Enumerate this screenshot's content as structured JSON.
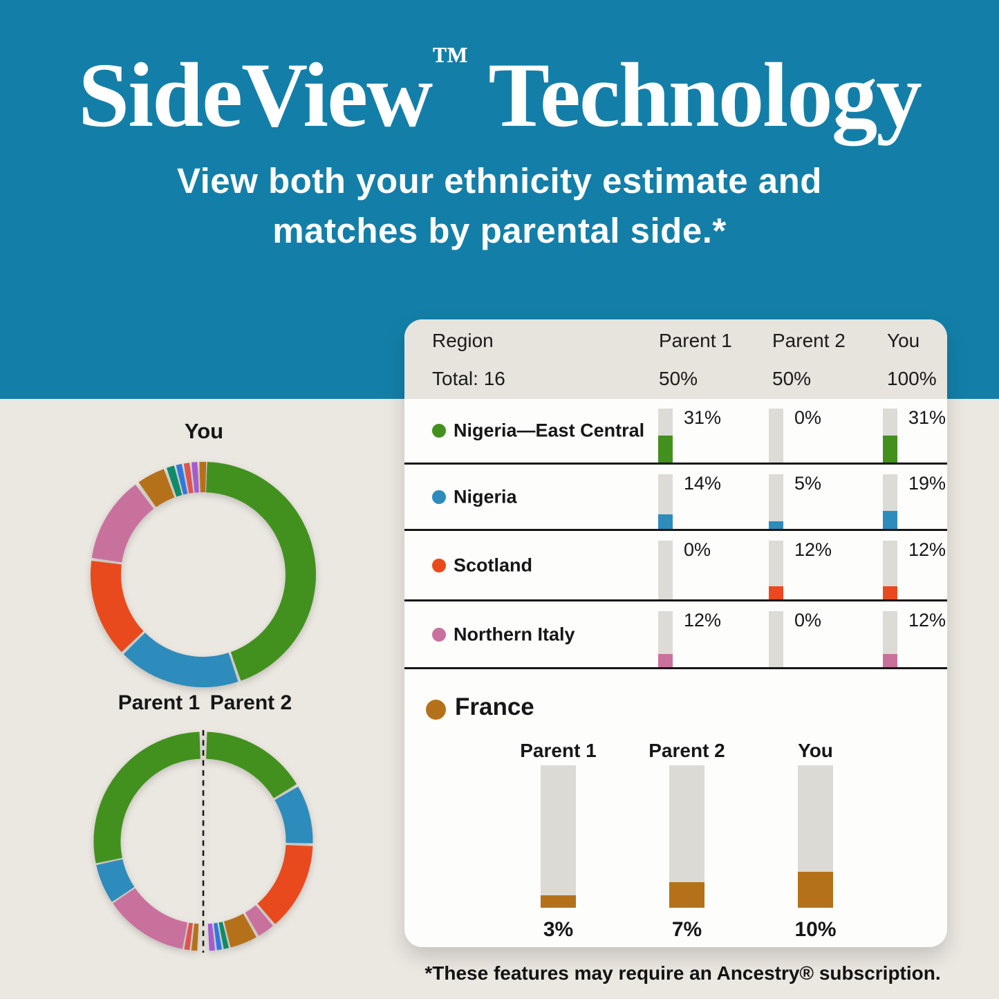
{
  "hero": {
    "title_main": "SideView",
    "title_tm": "™",
    "title_rest": " Technology",
    "subtitle_line1": "View both your ethnicity estimate and",
    "subtitle_line2": "matches by parental side.*",
    "bg_color": "#137FA8"
  },
  "footnote": "*These features may require an Ancestry® subscription.",
  "donut_labels": {
    "you": "You",
    "parent1": "Parent 1",
    "parent2": "Parent 2"
  },
  "palette": {
    "green": "#42911E",
    "blue": "#2D8CBB",
    "orange": "#E84A1D",
    "pink": "#C9719D",
    "brown": "#B5711A",
    "teal": "#0E8C68",
    "royal": "#2E79DE",
    "red": "#DC5452",
    "purple": "#A55BD1",
    "bar_track": "#DDDBD6",
    "page_bg": "#EBE7E1",
    "header_bg": "#E7E3DD"
  },
  "table": {
    "header": {
      "region": "Region",
      "total": "Total: 16",
      "col1": "Parent 1",
      "col2": "Parent 2",
      "col3": "You",
      "val1": "50%",
      "val2": "50%",
      "val3": "100%"
    },
    "rows": [
      {
        "region": "Nigeria—East Central",
        "color_key": "green",
        "values": [
          {
            "label": "31%",
            "pct": 31
          },
          {
            "label": "0%",
            "pct": 0
          },
          {
            "label": "31%",
            "pct": 31
          }
        ]
      },
      {
        "region": "Nigeria",
        "color_key": "blue",
        "values": [
          {
            "label": "14%",
            "pct": 14
          },
          {
            "label": "5%",
            "pct": 5
          },
          {
            "label": "19%",
            "pct": 19
          }
        ]
      },
      {
        "region": "Scotland",
        "color_key": "orange",
        "values": [
          {
            "label": "0%",
            "pct": 0
          },
          {
            "label": "12%",
            "pct": 12
          },
          {
            "label": "12%",
            "pct": 12
          }
        ]
      },
      {
        "region": "Northern Italy",
        "color_key": "pink",
        "values": [
          {
            "label": "12%",
            "pct": 12
          },
          {
            "label": "0%",
            "pct": 0
          },
          {
            "label": "12%",
            "pct": 12
          }
        ]
      }
    ]
  },
  "france": {
    "label": "France",
    "color_key": "brown",
    "bars": [
      {
        "label": "Parent 1",
        "pct": 3,
        "pct_label": "3%"
      },
      {
        "label": "Parent 2",
        "pct": 7,
        "pct_label": "7%"
      },
      {
        "label": "You",
        "pct": 10,
        "pct_label": "10%"
      }
    ]
  },
  "chart_data": [
    {
      "type": "donut",
      "title": "You",
      "legend_position": "none",
      "segments": [
        {
          "region": "Nigeria—East Central",
          "color_key": "green",
          "start_deg": 2,
          "end_deg": 160.5,
          "approx_pct": 44
        },
        {
          "region": "Nigeria",
          "color_key": "blue",
          "start_deg": 162,
          "end_deg": 225,
          "approx_pct": 17.5
        },
        {
          "region": "Scotland",
          "color_key": "orange",
          "start_deg": 226.5,
          "end_deg": 277,
          "approx_pct": 14
        },
        {
          "region": "Northern Italy",
          "color_key": "pink",
          "start_deg": 278.5,
          "end_deg": 323,
          "approx_pct": 12.5
        },
        {
          "region": "France",
          "color_key": "brown",
          "start_deg": 325,
          "end_deg": 339.5,
          "approx_pct": 4
        },
        {
          "region": "other",
          "color_key": "teal",
          "start_deg": 341,
          "end_deg": 345,
          "approx_pct": 1
        },
        {
          "region": "other",
          "color_key": "royal",
          "start_deg": 346,
          "end_deg": 349,
          "approx_pct": 1
        },
        {
          "region": "other",
          "color_key": "red",
          "start_deg": 350,
          "end_deg": 353,
          "approx_pct": 1
        },
        {
          "region": "other",
          "color_key": "purple",
          "start_deg": 354,
          "end_deg": 357,
          "approx_pct": 1
        },
        {
          "region": "other",
          "color_key": "brown",
          "start_deg": 358,
          "end_deg": 361.5,
          "approx_pct": 1
        }
      ]
    },
    {
      "type": "donut",
      "title": "Parent 1 / Parent 2",
      "legend_position": "none",
      "segments": [
        {
          "side": "parent2",
          "region": "Nigeria—East Central",
          "color_key": "green",
          "start_deg": 2,
          "end_deg": 58.5,
          "approx_pct": 15.7
        },
        {
          "side": "parent2",
          "region": "Nigeria",
          "color_key": "blue",
          "start_deg": 60,
          "end_deg": 91,
          "approx_pct": 8.6
        },
        {
          "side": "parent2",
          "region": "Scotland",
          "color_key": "orange",
          "start_deg": 92.5,
          "end_deg": 139,
          "approx_pct": 12.9
        },
        {
          "side": "parent2",
          "region": "Northern Italy",
          "color_key": "pink",
          "start_deg": 140.5,
          "end_deg": 149.5,
          "approx_pct": 2.5
        },
        {
          "side": "parent2",
          "region": "France",
          "color_key": "brown",
          "start_deg": 151,
          "end_deg": 165.5,
          "approx_pct": 4
        },
        {
          "side": "parent2",
          "region": "other",
          "color_key": "teal",
          "start_deg": 166.5,
          "end_deg": 169.2,
          "approx_pct": 0.8
        },
        {
          "side": "parent2",
          "region": "other",
          "color_key": "royal",
          "start_deg": 170.2,
          "end_deg": 172.8,
          "approx_pct": 0.7
        },
        {
          "side": "parent2",
          "region": "other",
          "color_key": "purple",
          "start_deg": 173.8,
          "end_deg": 176.8,
          "approx_pct": 0.8
        },
        {
          "side": "parent1",
          "region": "other",
          "color_key": "brown",
          "start_deg": 183.2,
          "end_deg": 186.2,
          "approx_pct": 0.8
        },
        {
          "side": "parent1",
          "region": "other",
          "color_key": "red",
          "start_deg": 187.2,
          "end_deg": 190,
          "approx_pct": 0.8
        },
        {
          "side": "parent1",
          "region": "Northern Italy",
          "color_key": "pink",
          "start_deg": 191,
          "end_deg": 235.5,
          "approx_pct": 12.4
        },
        {
          "side": "parent1",
          "region": "Nigeria",
          "color_key": "blue",
          "start_deg": 236.5,
          "end_deg": 257.5,
          "approx_pct": 5.8
        },
        {
          "side": "parent1",
          "region": "Nigeria—East Central",
          "color_key": "green",
          "start_deg": 258.5,
          "end_deg": 358,
          "approx_pct": 27.6
        }
      ]
    },
    {
      "type": "bar",
      "title": "France",
      "categories": [
        "Parent 1",
        "Parent 2",
        "You"
      ],
      "values": [
        3,
        7,
        10
      ],
      "unit": "%",
      "ylim": [
        0,
        100
      ],
      "grid": false
    },
    {
      "type": "table",
      "columns": [
        "Region",
        "Parent 1",
        "Parent 2",
        "You"
      ],
      "rows": [
        [
          "Total: 16",
          "50%",
          "50%",
          "100%"
        ],
        [
          "Nigeria—East Central",
          "31%",
          "0%",
          "31%"
        ],
        [
          "Nigeria",
          "14%",
          "5%",
          "19%"
        ],
        [
          "Scotland",
          "0%",
          "12%",
          "12%"
        ],
        [
          "Northern Italy",
          "12%",
          "0%",
          "12%"
        ],
        [
          "France",
          "3%",
          "7%",
          "10%"
        ]
      ]
    }
  ]
}
